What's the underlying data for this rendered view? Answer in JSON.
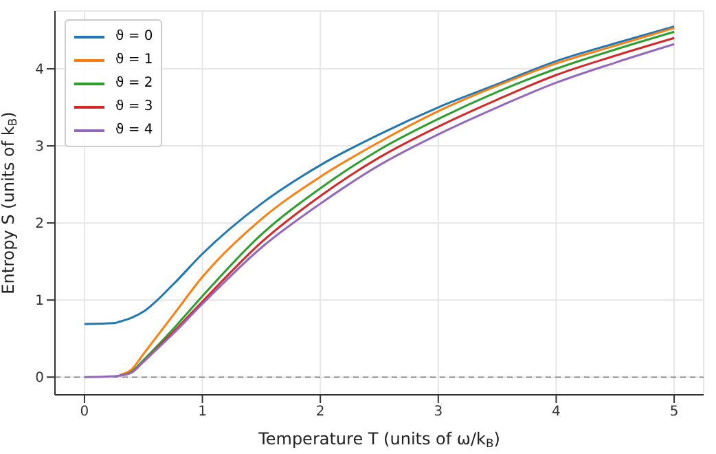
{
  "chart_data": {
    "type": "line",
    "xlabel": "Temperature T (units of ω/k$_{B}$)",
    "ylabel": "Entropy S (units of k$_{B}$)",
    "x": [
      0,
      0.25,
      0.3,
      0.4,
      0.5,
      0.75,
      1,
      1.5,
      2,
      2.5,
      3,
      3.5,
      4,
      4.5,
      5
    ],
    "series": [
      {
        "name": "ϑ = 0",
        "color": "#1f77b4",
        "values": [
          0.69,
          0.7,
          0.72,
          0.77,
          0.85,
          1.2,
          1.6,
          2.25,
          2.75,
          3.15,
          3.5,
          3.8,
          4.1,
          4.33,
          4.55
        ]
      },
      {
        "name": "ϑ = 1",
        "color": "#ff7f0e",
        "values": [
          null,
          null,
          0.03,
          0.1,
          0.3,
          0.8,
          1.3,
          2.05,
          2.6,
          3.05,
          3.45,
          3.78,
          4.07,
          4.3,
          4.53
        ]
      },
      {
        "name": "ϑ = 2",
        "color": "#2ca02c",
        "values": [
          null,
          null,
          0.02,
          0.07,
          0.22,
          0.62,
          1.05,
          1.85,
          2.45,
          2.95,
          3.35,
          3.7,
          4.0,
          4.25,
          4.48
        ]
      },
      {
        "name": "ϑ = 3",
        "color": "#d62728",
        "values": [
          null,
          null,
          0.02,
          0.06,
          0.2,
          0.58,
          0.98,
          1.75,
          2.35,
          2.85,
          3.25,
          3.6,
          3.92,
          4.17,
          4.4
        ]
      },
      {
        "name": "ϑ = 4",
        "color": "#9467bd",
        "values": [
          0,
          0.01,
          0.02,
          0.06,
          0.2,
          0.56,
          0.95,
          1.68,
          2.25,
          2.75,
          3.15,
          3.5,
          3.82,
          4.08,
          4.32
        ]
      }
    ],
    "xlim": [
      -0.25,
      5.25
    ],
    "ylim": [
      -0.23,
      4.75
    ],
    "xticks": [
      0,
      1,
      2,
      3,
      4,
      5
    ],
    "yticks": [
      0,
      1,
      2,
      3,
      4
    ],
    "ref_lines": [
      {
        "axis": "y",
        "value": 0,
        "color": "#808080",
        "line_style": "dashed"
      }
    ],
    "grid": true,
    "legend": "top left",
    "marker": "none",
    "line_style": "solid"
  }
}
